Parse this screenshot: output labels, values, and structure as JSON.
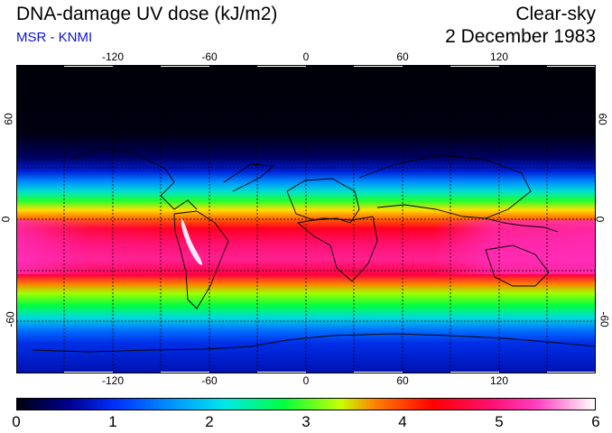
{
  "header": {
    "title": "DNA-damage UV dose (kJ/m2)",
    "source": "MSR - KNMI",
    "condition": "Clear-sky",
    "date": "2 December 1983"
  },
  "map": {
    "lon_ticks": [
      "-120",
      "-60",
      "0",
      "60",
      "120"
    ],
    "lat_ticks": [
      "60",
      "0",
      "-60"
    ]
  },
  "colorbar": {
    "ticks": [
      "0",
      "1",
      "2",
      "3",
      "4",
      "5",
      "6"
    ],
    "colors": [
      "#000010",
      "#0000b0",
      "#00a0ff",
      "#00e8e8",
      "#00ff40",
      "#c8ff00",
      "#ff8000",
      "#ff0000",
      "#ff2080",
      "#ff40c0",
      "#ffb0f0",
      "#ffffff"
    ]
  }
}
